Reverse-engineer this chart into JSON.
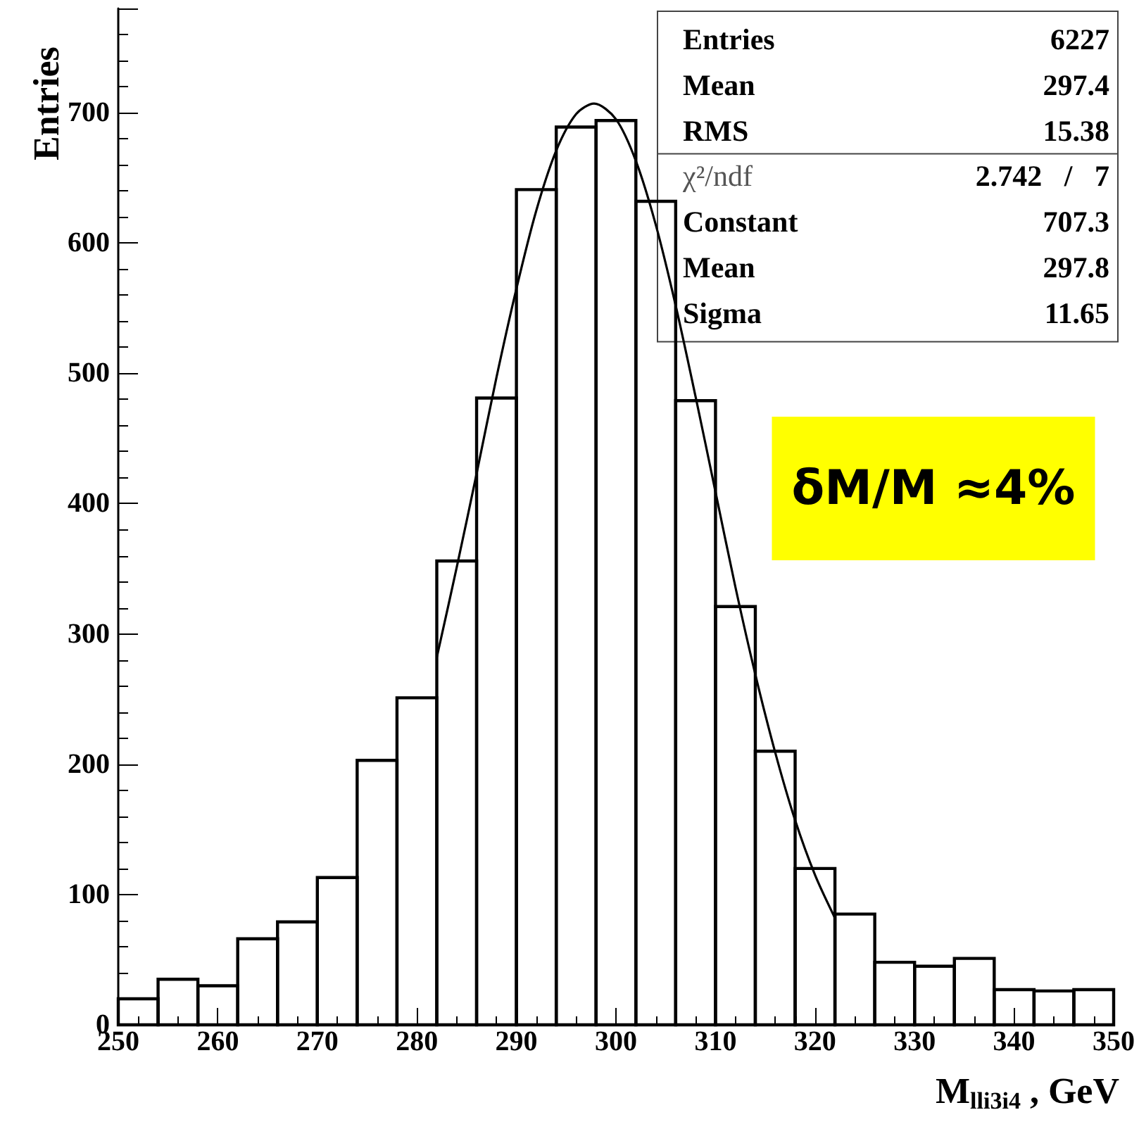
{
  "chart_data": {
    "type": "histogram",
    "xlabel": "M$_{lli3i4}$ , GeV",
    "ylabel": "Entries",
    "bins": [
      250,
      254,
      258,
      262,
      266,
      270,
      274,
      278,
      282,
      286,
      290,
      294,
      298,
      302,
      306,
      310,
      314,
      318,
      322,
      326,
      330,
      334,
      338,
      342,
      346,
      350
    ],
    "values": [
      20,
      35,
      30,
      66,
      79,
      113,
      203,
      251,
      356,
      481,
      641,
      689,
      694,
      632,
      479,
      321,
      210,
      120,
      85,
      48,
      45,
      51,
      27,
      26,
      27
    ],
    "color": "#000000",
    "series": [
      {
        "type": "line",
        "color": "#000000",
        "x": [
          282,
          284,
          286,
          288,
          290,
          292,
          294,
          296,
          297.8,
          300,
          302,
          304,
          306,
          308,
          310,
          312,
          314,
          316,
          318,
          320,
          322
        ],
        "values": [
          282,
          351,
          423,
          497,
          565,
          625,
          671,
          699,
          707,
          695,
          663,
          614,
          552,
          482,
          409,
          336,
          269,
          209,
          157,
          115,
          82
        ]
      }
    ],
    "xlim": [
      250,
      350
    ],
    "xticks": [
      250,
      260,
      270,
      280,
      290,
      300,
      310,
      320,
      330,
      340,
      350
    ],
    "ylim": [
      0,
      780
    ],
    "yticks": [
      0,
      100,
      200,
      300,
      400,
      500,
      600,
      700
    ],
    "grid": false,
    "annotations": [
      "Entries",
      "6227",
      "Mean",
      "297.4",
      "RMS",
      "15.38",
      "χ²/ndf",
      "2.742   /   7",
      "Constant",
      "707.3",
      "Mean",
      "297.8",
      "Sigma",
      "11.65",
      "δM/M ≈4%"
    ]
  }
}
